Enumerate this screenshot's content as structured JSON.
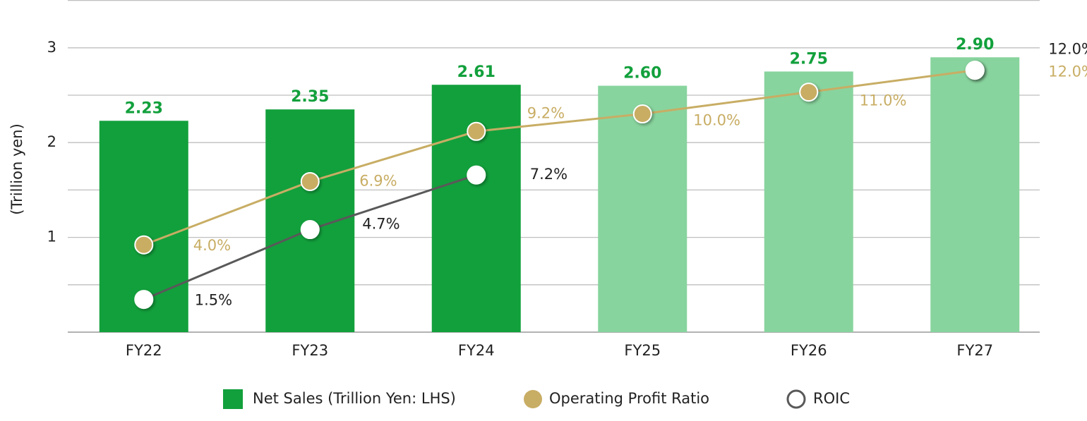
{
  "chart_data": {
    "type": "bar_line",
    "y_axis_label": "(Trillion yen)",
    "categories": [
      "FY22",
      "FY23",
      "FY24",
      "FY25",
      "FY26",
      "FY27"
    ],
    "ylim": [
      0,
      3.5
    ],
    "yticks": [
      1,
      2,
      3
    ],
    "ygrid_minor": [
      0.5,
      1.5,
      2.5,
      3.5
    ],
    "grid": true,
    "y2lim": [
      0,
      15.2
    ],
    "series": [
      {
        "name": "Net Sales (Trillion Yen: LHS)",
        "type": "bar",
        "color": "#12a03c",
        "colors": [
          "#12a03c",
          "#12a03c",
          "#12a03c",
          "#88d49e",
          "#88d49e",
          "#88d49e"
        ],
        "values": [
          2.23,
          2.35,
          2.61,
          2.6,
          2.75,
          2.9
        ],
        "value_labels": [
          "2.23",
          "2.35",
          "2.61",
          "2.60",
          "2.75",
          "2.90"
        ]
      },
      {
        "name": "Operating Profit Ratio",
        "type": "line",
        "axis": "y2",
        "color": "#c8ad64",
        "values": [
          4.0,
          6.9,
          9.2,
          10.0,
          11.0,
          12.0
        ],
        "value_labels": [
          "4.0%",
          "6.9%",
          "9.2%",
          "10.0%",
          "11.0%",
          "12.0%"
        ]
      },
      {
        "name": "ROIC",
        "type": "line",
        "axis": "y2",
        "color": "#595959",
        "values": [
          1.5,
          4.7,
          7.2,
          null,
          null,
          12.0
        ],
        "value_labels": [
          "1.5%",
          "4.7%",
          "7.2%",
          null,
          null,
          "12.0%"
        ]
      }
    ],
    "legend": "bottom"
  }
}
